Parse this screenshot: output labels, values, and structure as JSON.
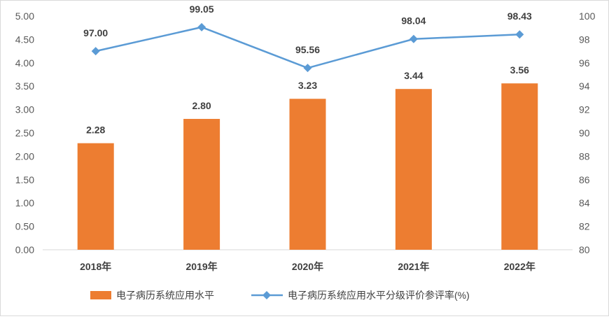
{
  "chart_data": {
    "type": "bar",
    "title": "",
    "xlabel": "",
    "ylabel": "",
    "categories": [
      "2018年",
      "2019年",
      "2020年",
      "2021年",
      "2022年"
    ],
    "series": [
      {
        "name": "电子病历系统应用水平",
        "type": "bar",
        "axis": "left",
        "color": "#ED7D31",
        "values": [
          2.28,
          2.8,
          3.23,
          3.44,
          3.56
        ],
        "labels": [
          "2.28",
          "2.80",
          "3.23",
          "3.44",
          "3.56"
        ]
      },
      {
        "name": "电子病历系统应用水平分级评价参评率(%)",
        "type": "line",
        "axis": "right",
        "color": "#5B9BD5",
        "marker": "diamond",
        "values": [
          97.0,
          99.05,
          95.56,
          98.04,
          98.43
        ],
        "labels": [
          "97.00",
          "99.05",
          "95.56",
          "98.04",
          "98.43"
        ]
      }
    ],
    "ylim": [
      0,
      5
    ],
    "y2lim": [
      80,
      100
    ],
    "left_ticks": [
      "0.00",
      "0.50",
      "1.00",
      "1.50",
      "2.00",
      "2.50",
      "3.00",
      "3.50",
      "4.00",
      "4.50",
      "5.00"
    ],
    "right_ticks": [
      "80",
      "82",
      "84",
      "86",
      "88",
      "90",
      "92",
      "94",
      "96",
      "98",
      "100"
    ],
    "grid": false,
    "legend_position": "bottom"
  }
}
